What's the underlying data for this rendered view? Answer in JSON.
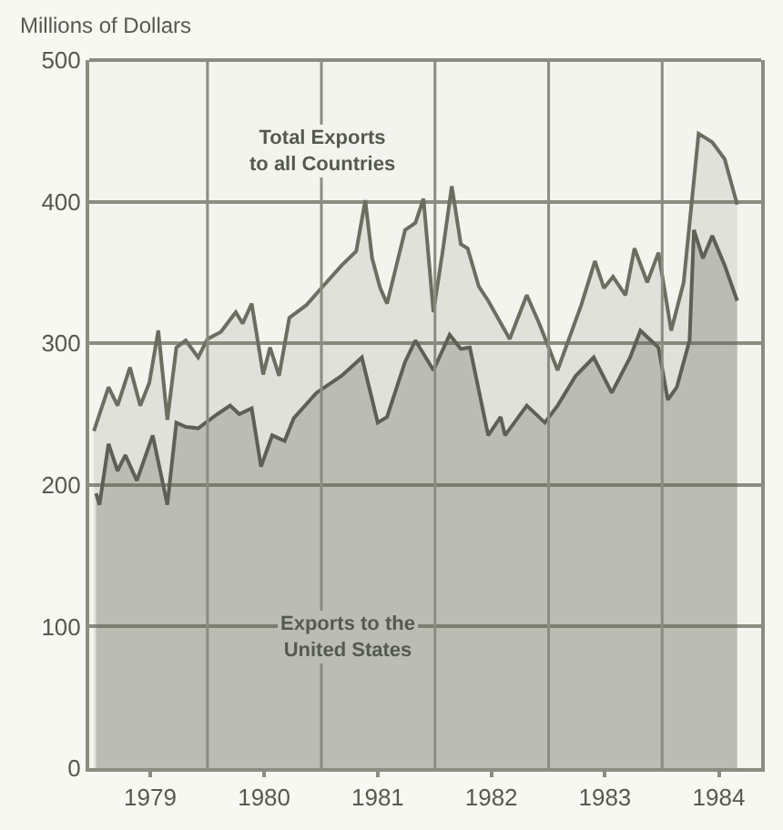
{
  "chart_data": {
    "type": "area",
    "ylabel": "Millions of Dollars",
    "xlim": [
      "1978-12-17",
      "1984-11-14"
    ],
    "xticks": [
      {
        "value": "1979-07-01",
        "label": "1979"
      },
      {
        "value": "1980-07-01",
        "label": "1980"
      },
      {
        "value": "1981-07-01",
        "label": "1981"
      },
      {
        "value": "1982-07-01",
        "label": "1982"
      },
      {
        "value": "1983-07-01",
        "label": "1983"
      },
      {
        "value": "1984-07-01",
        "label": "1984"
      }
    ],
    "ylim": [
      0,
      500
    ],
    "yticks": [
      0,
      100,
      200,
      300,
      400,
      500
    ],
    "grid": "y",
    "ref_lines": [
      {
        "axis": "x",
        "value": "1980-01-01"
      },
      {
        "axis": "x",
        "value": "1981-01-01"
      },
      {
        "axis": "x",
        "value": "1982-01-01"
      },
      {
        "axis": "x",
        "value": "1983-01-01"
      },
      {
        "axis": "x",
        "value": "1984-01-01"
      }
    ],
    "series": [
      {
        "name": "Total Exports\nto all Countries",
        "color": "#6b6e60",
        "x": [
          "1979-01-01",
          "1979-02-17",
          "1979-03-18",
          "1979-04-27",
          "1979-05-30",
          "1979-06-28",
          "1979-07-27",
          "1979-08-25",
          "1979-09-23",
          "1979-10-23",
          "1979-12-02",
          "1980-01-01",
          "1980-02-13",
          "1980-04-01",
          "1980-04-23",
          "1980-05-22",
          "1980-06-28",
          "1980-07-20",
          "1980-08-18",
          "1980-09-20",
          "1980-11-14",
          "1981-01-01",
          "1981-03-07",
          "1981-04-23",
          "1981-05-22",
          "1981-06-13",
          "1981-07-09",
          "1981-07-31",
          "1981-09-27",
          "1981-10-30",
          "1981-11-25",
          "1981-12-27",
          "1982-01-27",
          "1982-02-24",
          "1982-03-25",
          "1982-04-16",
          "1982-05-22",
          "1982-06-21",
          "1982-08-29",
          "1982-10-23",
          "1982-12-02",
          "1983-01-30",
          "1983-04-16",
          "1983-05-30",
          "1983-06-28",
          "1983-07-27",
          "1983-09-05",
          "1983-10-04",
          "1983-11-14",
          "1983-12-20",
          "1984-01-30",
          "1984-03-10",
          "1984-04-27",
          "1984-06-10",
          "1984-07-20",
          "1984-08-29"
        ],
        "values": [
          238,
          269,
          256,
          283,
          256,
          272,
          309,
          246,
          297,
          302,
          290,
          303,
          308,
          322,
          314,
          328,
          278,
          297,
          277,
          318,
          327,
          339,
          355,
          365,
          401,
          360,
          339,
          328,
          380,
          385,
          402,
          322,
          367,
          411,
          370,
          367,
          340,
          330,
          303,
          334,
          314,
          281,
          327,
          358,
          339,
          347,
          334,
          367,
          343,
          364,
          309,
          343,
          448,
          442,
          430,
          398
        ]
      },
      {
        "name": "Exports to the\nUnited States",
        "color": "#5d6054",
        "x": [
          "1979-01-08",
          "1979-01-19",
          "1979-02-17",
          "1979-03-18",
          "1979-04-12",
          "1979-05-19",
          "1979-07-09",
          "1979-08-25",
          "1979-09-23",
          "1979-10-23",
          "1979-12-02",
          "1980-02-02",
          "1980-03-14",
          "1980-04-12",
          "1980-05-22",
          "1980-06-21",
          "1980-07-27",
          "1980-09-05",
          "1980-10-04",
          "1980-12-16",
          "1981-03-07",
          "1981-05-11",
          "1981-07-01",
          "1981-07-31",
          "1981-09-27",
          "1981-10-30",
          "1981-12-27",
          "1982-02-17",
          "1982-03-25",
          "1982-04-23",
          "1982-06-21",
          "1982-07-31",
          "1982-08-14",
          "1982-10-23",
          "1982-12-20",
          "1983-01-30",
          "1983-03-29",
          "1983-05-26",
          "1983-07-23",
          "1983-09-20",
          "1983-10-23",
          "1983-12-20",
          "1984-01-19",
          "1984-02-17",
          "1984-03-29",
          "1984-04-12",
          "1984-05-11",
          "1984-06-10",
          "1984-07-20",
          "1984-08-29"
        ],
        "values": [
          194,
          186,
          229,
          210,
          221,
          203,
          235,
          186,
          244,
          241,
          240,
          250,
          256,
          250,
          254,
          213,
          235,
          231,
          247,
          265,
          277,
          290,
          244,
          248,
          287,
          302,
          281,
          306,
          296,
          297,
          235,
          248,
          235,
          256,
          244,
          256,
          277,
          290,
          265,
          290,
          309,
          297,
          260,
          269,
          302,
          380,
          360,
          376,
          355,
          330
        ]
      }
    ]
  }
}
